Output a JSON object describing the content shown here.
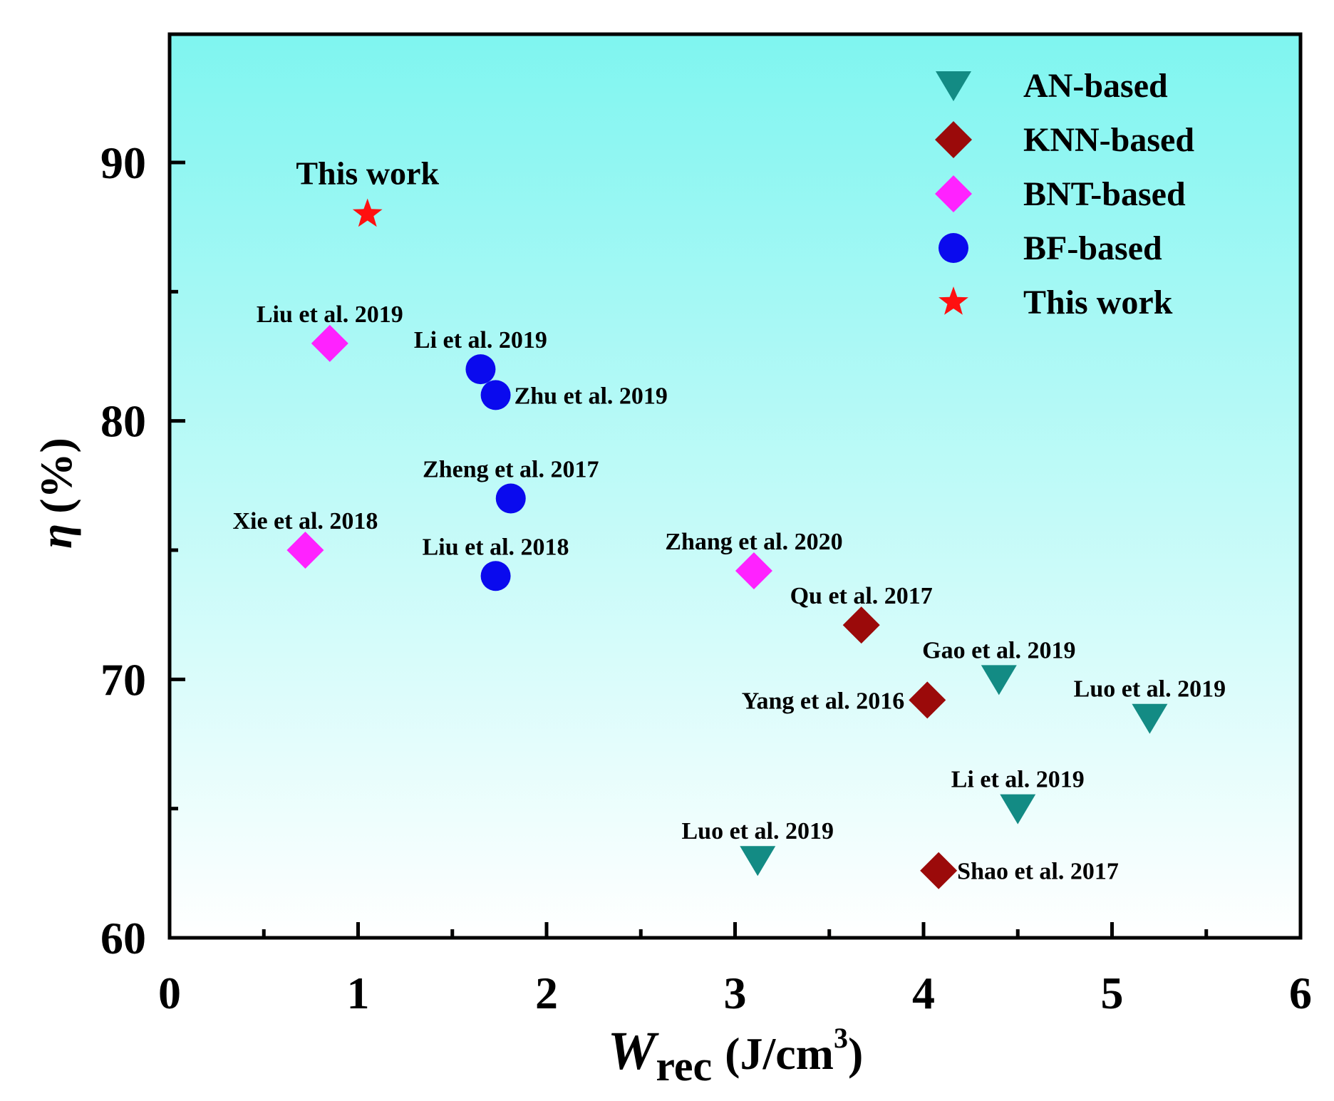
{
  "chart_data": {
    "type": "scatter",
    "title": "",
    "xlabel_main": "W",
    "xlabel_sub": "rec",
    "xlabel_unit": "(J/cm",
    "xlabel_sup": "3",
    "xlabel_close": ")",
    "ylabel_symbol": "η",
    "ylabel_unit": "(%)",
    "xlim": [
      0,
      6
    ],
    "ylim": [
      60,
      95
    ],
    "x_ticks": [
      0,
      1,
      2,
      3,
      4,
      5,
      6
    ],
    "x_tick_labels": [
      "0",
      "1",
      "2",
      "3",
      "4",
      "5",
      "6"
    ],
    "y_ticks": [
      60,
      70,
      80,
      90
    ],
    "y_tick_labels": [
      "60",
      "70",
      "80",
      "90"
    ],
    "background_gradient": [
      "#7ff5f0",
      "#ffffff"
    ],
    "legend_position": "top-right",
    "series": [
      {
        "name": "AN-based",
        "marker": "triangle-down",
        "color": "#138b84",
        "points": [
          {
            "x": 4.4,
            "y": 70.0,
            "label": "Gao et al. 2019",
            "label_pos": "above"
          },
          {
            "x": 5.2,
            "y": 68.5,
            "label": "Luo et al. 2019",
            "label_pos": "above"
          },
          {
            "x": 4.5,
            "y": 65.0,
            "label": "Li et al. 2019",
            "label_pos": "above"
          },
          {
            "x": 3.12,
            "y": 63.0,
            "label": "Luo et al. 2019",
            "label_pos": "above"
          }
        ]
      },
      {
        "name": "KNN-based",
        "marker": "diamond",
        "color": "#9b0a0a",
        "points": [
          {
            "x": 3.67,
            "y": 72.1,
            "label": "Qu et al. 2017",
            "label_pos": "above"
          },
          {
            "x": 4.02,
            "y": 69.2,
            "label": "Yang et al. 2016",
            "label_pos": "left"
          },
          {
            "x": 4.08,
            "y": 62.6,
            "label": "Shao et al. 2017",
            "label_pos": "right"
          }
        ]
      },
      {
        "name": "BNT-based",
        "marker": "diamond",
        "color": "#ff22ff",
        "points": [
          {
            "x": 0.85,
            "y": 83.0,
            "label": "Liu et al. 2019",
            "label_pos": "above"
          },
          {
            "x": 0.72,
            "y": 75.0,
            "label": "Xie et al. 2018",
            "label_pos": "above"
          },
          {
            "x": 3.1,
            "y": 74.2,
            "label": "Zhang et al. 2020",
            "label_pos": "above"
          }
        ]
      },
      {
        "name": "BF-based",
        "marker": "circle",
        "color": "#0a0aee",
        "points": [
          {
            "x": 1.65,
            "y": 82.0,
            "label": "Li et al. 2019",
            "label_pos": "above"
          },
          {
            "x": 1.73,
            "y": 81.0,
            "label": "Zhu et al. 2019",
            "label_pos": "right"
          },
          {
            "x": 1.81,
            "y": 77.0,
            "label": "Zheng et al. 2017",
            "label_pos": "above"
          },
          {
            "x": 1.73,
            "y": 74.0,
            "label": "Liu et al. 2018",
            "label_pos": "above"
          }
        ]
      },
      {
        "name": "This work",
        "marker": "star",
        "color": "#ff1010",
        "points": [
          {
            "x": 1.05,
            "y": 88.0,
            "label": "This work",
            "label_pos": "above-large"
          }
        ]
      }
    ]
  }
}
